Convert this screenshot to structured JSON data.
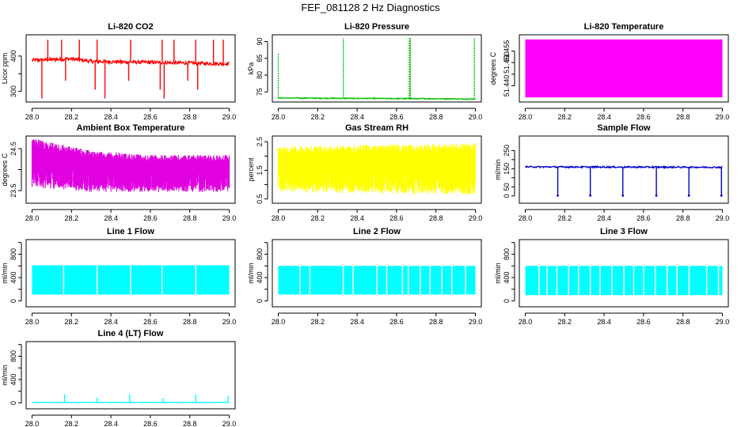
{
  "page_title": "FEF_081128  2 Hz Diagnostics",
  "chart_data": [
    {
      "id": "co2",
      "type": "line",
      "title": "Li-820 CO2",
      "ylabel": "Licor ppm",
      "xlim": [
        27.97,
        29.03
      ],
      "ylim": [
        270,
        460
      ],
      "xticks": [
        28.0,
        28.2,
        28.4,
        28.6,
        28.8,
        29.0
      ],
      "xtick_labels": [
        "28.0",
        "28.2",
        "28.4",
        "28.6",
        "28.8",
        "29.0"
      ],
      "yticks": [
        300,
        350,
        400
      ],
      "ytick_labels": [
        "300",
        "",
        "400"
      ],
      "color": "#ff0000",
      "baseline": [
        [
          28.0,
          388
        ],
        [
          28.2,
          392
        ],
        [
          28.3,
          385
        ],
        [
          28.6,
          382
        ],
        [
          28.8,
          380
        ],
        [
          29.0,
          378
        ]
      ],
      "noise": 5,
      "spikes_up": [
        28.08,
        28.15,
        28.24,
        28.33,
        28.5,
        28.66,
        28.72,
        28.83,
        28.92,
        28.97
      ],
      "spike_up_value": 446,
      "spikes_down": [
        28.05,
        28.17,
        28.32,
        28.37,
        28.49,
        28.65,
        28.67,
        28.79,
        28.84
      ],
      "spike_down_value": 310
    },
    {
      "id": "pressure",
      "type": "line",
      "title": "Li-820 Pressure",
      "ylabel": "kPa",
      "xlim": [
        27.97,
        29.03
      ],
      "ylim": [
        72,
        92
      ],
      "xticks": [
        28.0,
        28.2,
        28.4,
        28.6,
        28.8,
        29.0
      ],
      "xtick_labels": [
        "28.0",
        "28.2",
        "28.4",
        "28.6",
        "28.8",
        "29.0"
      ],
      "yticks": [
        75,
        80,
        85,
        90
      ],
      "ytick_labels": [
        "75",
        "80",
        "85",
        "90"
      ],
      "color": "#00c000",
      "baseline": [
        [
          28.0,
          73.2
        ],
        [
          29.0,
          72.9
        ]
      ],
      "noise": 0.15,
      "spikes_up": [
        28.33,
        28.665,
        28.67,
        28.995
      ],
      "spike_up_value": 91,
      "start_spike": 86.5
    },
    {
      "id": "li820-temp",
      "type": "area",
      "title": "Li-820 Temperature",
      "ylabel": "degrees C",
      "xlim": [
        27.97,
        29.03
      ],
      "ylim": [
        51.433,
        51.462
      ],
      "xticks": [
        28.0,
        28.2,
        28.4,
        28.6,
        28.8,
        29.0
      ],
      "xtick_labels": [
        "28.0",
        "28.2",
        "28.4",
        "28.6",
        "28.8",
        "29.0"
      ],
      "yticks": [
        51.44,
        51.445,
        51.45,
        51.455
      ],
      "ytick_labels": [
        "51.440",
        "",
        "51.450",
        "51.455"
      ],
      "color": "#ff00ff",
      "band": [
        51.435,
        51.46
      ]
    },
    {
      "id": "box-temp",
      "type": "area",
      "title": "Ambient Box Temperature",
      "ylabel": "degrees C",
      "xlim": [
        27.97,
        29.03
      ],
      "ylim": [
        23.2,
        24.8
      ],
      "xticks": [
        28.0,
        28.2,
        28.4,
        28.6,
        28.8,
        29.0
      ],
      "xtick_labels": [
        "28.0",
        "28.2",
        "28.4",
        "28.6",
        "28.8",
        "29.0"
      ],
      "yticks": [
        23.5,
        24.0,
        24.5
      ],
      "ytick_labels": [
        "23.5",
        "",
        "24.5"
      ],
      "color": "#e000e0",
      "band_low": [
        [
          28.0,
          23.55
        ],
        [
          28.3,
          23.45
        ],
        [
          28.6,
          23.45
        ],
        [
          29.0,
          23.45
        ]
      ],
      "band_high": [
        [
          28.0,
          24.75
        ],
        [
          28.1,
          24.65
        ],
        [
          28.3,
          24.45
        ],
        [
          28.6,
          24.35
        ],
        [
          29.0,
          24.35
        ]
      ]
    },
    {
      "id": "rh",
      "type": "area",
      "title": "Gas Stream RH",
      "ylabel": "percent",
      "xlim": [
        27.97,
        29.03
      ],
      "ylim": [
        0.35,
        2.7
      ],
      "xticks": [
        28.0,
        28.2,
        28.4,
        28.6,
        28.8,
        29.0
      ],
      "xtick_labels": [
        "28.0",
        "28.2",
        "28.4",
        "28.6",
        "28.8",
        "29.0"
      ],
      "yticks": [
        0.5,
        1.0,
        1.5,
        2.0,
        2.5
      ],
      "ytick_labels": [
        "0.5",
        "",
        "1.5",
        "",
        "2.5"
      ],
      "color": "#ffff00",
      "band_low": [
        [
          28.0,
          0.7
        ],
        [
          29.0,
          0.6
        ]
      ],
      "band_high": [
        [
          28.0,
          2.35
        ],
        [
          29.0,
          2.45
        ]
      ]
    },
    {
      "id": "sample-flow",
      "type": "line",
      "title": "Sample Flow",
      "ylabel": "ml/min",
      "xlim": [
        27.97,
        29.03
      ],
      "ylim": [
        -40,
        330
      ],
      "xticks": [
        28.0,
        28.2,
        28.4,
        28.6,
        28.8,
        29.0
      ],
      "xtick_labels": [
        "28.0",
        "28.2",
        "28.4",
        "28.6",
        "28.8",
        "29.0"
      ],
      "yticks": [
        0,
        50,
        100,
        150,
        200,
        250
      ],
      "ytick_labels": [
        "0",
        "50",
        "",
        "150",
        "",
        "250"
      ],
      "color": "#0000cc",
      "baseline": [
        [
          28.0,
          160
        ],
        [
          29.0,
          158
        ]
      ],
      "noise": 4,
      "spikes_down": [
        28.165,
        28.33,
        28.495,
        28.665,
        28.83,
        28.995
      ],
      "spike_down_value": 2
    },
    {
      "id": "line1",
      "type": "area",
      "title": "Line 1 Flow",
      "ylabel": "ml/min",
      "xlim": [
        27.97,
        29.03
      ],
      "ylim": [
        -100,
        1050
      ],
      "xticks": [
        28.0,
        28.2,
        28.4,
        28.6,
        28.8,
        29.0
      ],
      "xtick_labels": [
        "28.0",
        "28.2",
        "28.4",
        "28.6",
        "28.8",
        "29.0"
      ],
      "yticks": [
        0,
        200,
        400,
        600,
        800,
        1000
      ],
      "ytick_labels": [
        "0",
        "",
        "400",
        "",
        "800",
        ""
      ],
      "color": "#00ffff",
      "band": [
        110,
        610
      ],
      "gaps": [
        28.16,
        28.33,
        28.5,
        28.66,
        28.83
      ]
    },
    {
      "id": "line2",
      "type": "area",
      "title": "Line 2 Flow",
      "ylabel": "ml/min",
      "xlim": [
        27.97,
        29.03
      ],
      "ylim": [
        -100,
        1050
      ],
      "xticks": [
        28.0,
        28.2,
        28.4,
        28.6,
        28.8,
        29.0
      ],
      "xtick_labels": [
        "28.0",
        "28.2",
        "28.4",
        "28.6",
        "28.8",
        "29.0"
      ],
      "yticks": [
        0,
        200,
        400,
        600,
        800,
        1000
      ],
      "ytick_labels": [
        "0",
        "",
        "400",
        "",
        "800",
        ""
      ],
      "color": "#00ffff",
      "band": [
        110,
        600
      ],
      "gaps": [
        28.11,
        28.16,
        28.33,
        28.38,
        28.5,
        28.55,
        28.63,
        28.66,
        28.72,
        28.77,
        28.83,
        28.88,
        28.95
      ]
    },
    {
      "id": "line3",
      "type": "area",
      "title": "Line 3 Flow",
      "ylabel": "ml/min",
      "xlim": [
        27.97,
        29.03
      ],
      "ylim": [
        -100,
        1050
      ],
      "xticks": [
        28.0,
        28.2,
        28.4,
        28.6,
        28.8,
        29.0
      ],
      "xtick_labels": [
        "28.0",
        "28.2",
        "28.4",
        "28.6",
        "28.8",
        "29.0"
      ],
      "yticks": [
        0,
        200,
        400,
        600,
        800,
        1000
      ],
      "ytick_labels": [
        "0",
        "",
        "400",
        "",
        "800",
        ""
      ],
      "color": "#00ffff",
      "band": [
        100,
        600
      ],
      "gaps": [
        28.07,
        28.11,
        28.16,
        28.22,
        28.27,
        28.33,
        28.38,
        28.44,
        28.5,
        28.55,
        28.6,
        28.66,
        28.72,
        28.77,
        28.83,
        28.92,
        28.98
      ]
    },
    {
      "id": "line4",
      "type": "line",
      "title": "Line 4 (LT) Flow",
      "ylabel": "ml/min",
      "xlim": [
        27.97,
        29.03
      ],
      "ylim": [
        -100,
        1050
      ],
      "xticks": [
        28.0,
        28.2,
        28.4,
        28.6,
        28.8,
        29.0
      ],
      "xtick_labels": [
        "28.0",
        "28.2",
        "28.4",
        "28.6",
        "28.8",
        "29.0"
      ],
      "yticks": [
        0,
        200,
        400,
        600,
        800,
        1000
      ],
      "ytick_labels": [
        "0",
        "",
        "400",
        "",
        "800",
        ""
      ],
      "color": "#00ffff",
      "baseline": [
        [
          28.0,
          10
        ],
        [
          29.0,
          10
        ]
      ],
      "noise": 3,
      "spikes_up": [
        28.165,
        28.33,
        28.495,
        28.665,
        28.83,
        28.995
      ],
      "spike_up_value": 130,
      "spike_heights": [
        150,
        95,
        150,
        85,
        150,
        120
      ]
    }
  ]
}
